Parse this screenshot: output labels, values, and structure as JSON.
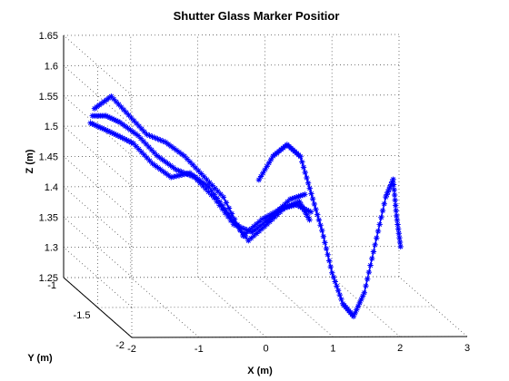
{
  "chart_data": {
    "type": "line",
    "title": "Shutter Glass Marker Positior",
    "xlabel": "X (m)",
    "ylabel": "Y (m)",
    "zlabel": "Z (m)",
    "xlim": [
      -2,
      3
    ],
    "ylim": [
      -2,
      -1
    ],
    "zlim": [
      1.25,
      1.65
    ],
    "xticks": [
      "-2",
      "-1",
      "0",
      "1",
      "2",
      "3"
    ],
    "yticks": [
      "-2",
      "-1.5",
      "-1"
    ],
    "zticks": [
      "1.25",
      "1.3",
      "1.35",
      "1.4",
      "1.45",
      "1.5",
      "1.55",
      "1.6",
      "1.65"
    ],
    "grid": true,
    "marker": "*",
    "color": "#0000ff",
    "series": [
      {
        "points": [
          [
            -1.65,
            -1.05,
            1.51
          ],
          [
            -1.45,
            -1.05,
            1.5
          ],
          [
            -1.25,
            -1.06,
            1.49
          ],
          [
            -1.05,
            -1.09,
            1.48
          ],
          [
            -0.8,
            -1.12,
            1.45
          ],
          [
            -0.55,
            -1.15,
            1.43
          ],
          [
            -0.3,
            -1.18,
            1.44
          ],
          [
            -0.05,
            -1.21,
            1.42
          ],
          [
            0.2,
            -1.25,
            1.38
          ],
          [
            0.45,
            -1.3,
            1.34
          ],
          [
            0.7,
            -1.33,
            1.37
          ],
          [
            0.95,
            -1.35,
            1.4
          ],
          [
            1.15,
            -1.36,
            1.41
          ],
          [
            1.3,
            -1.36,
            1.38
          ]
        ]
      },
      {
        "points": [
          [
            -1.6,
            -1.03,
            1.52
          ],
          [
            -1.4,
            -1.03,
            1.52
          ],
          [
            -1.2,
            -1.04,
            1.51
          ],
          [
            -0.95,
            -1.06,
            1.49
          ],
          [
            -0.7,
            -1.09,
            1.46
          ],
          [
            -0.45,
            -1.12,
            1.44
          ],
          [
            -0.2,
            -1.15,
            1.43
          ],
          [
            0.05,
            -1.19,
            1.4
          ],
          [
            0.3,
            -1.23,
            1.36
          ],
          [
            0.55,
            -1.26,
            1.35
          ],
          [
            0.8,
            -1.3,
            1.38
          ],
          [
            1.05,
            -1.32,
            1.41
          ],
          [
            1.25,
            -1.34,
            1.42
          ]
        ]
      },
      {
        "points": [
          [
            -1.55,
            -1.01,
            1.53
          ],
          [
            -1.3,
            -1.01,
            1.55
          ],
          [
            -1.05,
            -1.02,
            1.52
          ],
          [
            -0.8,
            -1.04,
            1.49
          ],
          [
            -0.55,
            -1.07,
            1.48
          ],
          [
            -0.3,
            -1.1,
            1.46
          ],
          [
            -0.05,
            -1.14,
            1.43
          ],
          [
            0.2,
            -1.18,
            1.4
          ],
          [
            0.45,
            -1.22,
            1.34
          ],
          [
            0.7,
            -1.25,
            1.37
          ],
          [
            0.95,
            -1.28,
            1.39
          ],
          [
            1.15,
            -1.31,
            1.4
          ],
          [
            1.35,
            -1.33,
            1.39
          ]
        ]
      },
      {
        "points": [
          [
            0.2,
            -1.7,
            1.48
          ],
          [
            0.4,
            -1.71,
            1.52
          ],
          [
            0.6,
            -1.72,
            1.54
          ],
          [
            0.8,
            -1.72,
            1.52
          ],
          [
            0.95,
            -1.73,
            1.46
          ],
          [
            1.1,
            -1.74,
            1.4
          ],
          [
            1.25,
            -1.74,
            1.33
          ],
          [
            1.4,
            -1.75,
            1.28
          ],
          [
            1.55,
            -1.76,
            1.26
          ],
          [
            1.7,
            -1.77,
            1.3
          ],
          [
            1.85,
            -1.78,
            1.38
          ],
          [
            2.0,
            -1.79,
            1.46
          ],
          [
            2.1,
            -1.8,
            1.49
          ],
          [
            2.15,
            -1.8,
            1.43
          ],
          [
            2.2,
            -1.81,
            1.38
          ]
        ]
      }
    ]
  }
}
